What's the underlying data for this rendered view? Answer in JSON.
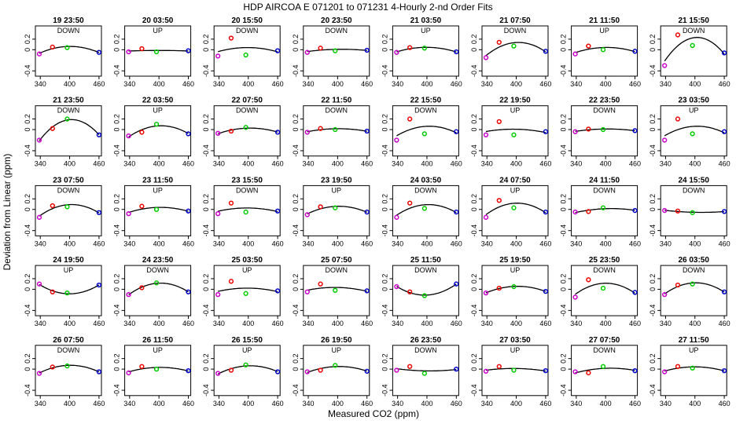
{
  "figure": {
    "title": "HDP    AIRCOA E    071201 to 071231   4-Hourly 2-nd Order Fits",
    "xlabel": "Measured CO2 (ppm)",
    "ylabel": "Deviation from Linear (ppm)"
  },
  "chart_data": {
    "type": "scatter",
    "layout": "grid of 5 rows x 8 columns of small multiples",
    "xlim": [
      330,
      465
    ],
    "ylim": [
      -0.5,
      0.45
    ],
    "x_ticks": [
      340,
      400,
      460
    ],
    "y_ticks": [
      -0.4,
      0,
      0.2
    ],
    "y_tick_labels": [
      "-0.4",
      "0",
      "0.2"
    ],
    "grid": false,
    "legend": "none",
    "colors": {
      "s1": "#cc00cc",
      "s2": "#ee0000",
      "s3": "#00cc00",
      "s4": "#0000cc",
      "fit": "#000000"
    },
    "markers": [
      "circle"
    ],
    "panel_x": [
      338,
      365,
      395,
      460
    ],
    "panels": [
      {
        "title": "19 23:50",
        "dir": "DOWN",
        "y": [
          -0.08,
          0.05,
          0.04,
          -0.05
        ]
      },
      {
        "title": "20 03:50",
        "dir": "UP",
        "y": [
          -0.04,
          0.02,
          -0.04,
          -0.02
        ]
      },
      {
        "title": "20 15:50",
        "dir": "DOWN",
        "y": [
          -0.12,
          0.22,
          -0.1,
          -0.02
        ]
      },
      {
        "title": "20 23:50",
        "dir": "DOWN",
        "y": [
          -0.05,
          0.03,
          -0.02,
          -0.01
        ]
      },
      {
        "title": "21 03:50",
        "dir": "UP",
        "y": [
          -0.05,
          0.04,
          0.03,
          -0.04
        ]
      },
      {
        "title": "21 07:50",
        "dir": "DOWN",
        "y": [
          -0.15,
          0.14,
          0.07,
          -0.03
        ]
      },
      {
        "title": "21 11:50",
        "dir": "UP",
        "y": [
          -0.08,
          0.07,
          0.0,
          -0.03
        ]
      },
      {
        "title": "21 15:50",
        "dir": "DOWN",
        "y": [
          -0.3,
          0.28,
          0.08,
          -0.06
        ]
      },
      {
        "title": "21 23:50",
        "dir": "DOWN",
        "y": [
          -0.2,
          0.02,
          0.2,
          -0.1
        ]
      },
      {
        "title": "22 03:50",
        "dir": "UP",
        "y": [
          -0.12,
          -0.05,
          0.1,
          -0.08
        ]
      },
      {
        "title": "22 07:50",
        "dir": "DOWN",
        "y": [
          -0.07,
          -0.03,
          0.04,
          -0.05
        ]
      },
      {
        "title": "22 11:50",
        "dir": "DOWN",
        "y": [
          -0.05,
          0.02,
          0.0,
          -0.03
        ]
      },
      {
        "title": "22 15:50",
        "dir": "DOWN",
        "y": [
          -0.2,
          0.2,
          -0.08,
          -0.04
        ]
      },
      {
        "title": "22 19:50",
        "dir": "UP",
        "y": [
          -0.1,
          0.15,
          -0.1,
          -0.04
        ]
      },
      {
        "title": "22 23:50",
        "dir": "DOWN",
        "y": [
          -0.04,
          0.01,
          0.0,
          -0.02
        ]
      },
      {
        "title": "23 03:50",
        "dir": "UP",
        "y": [
          -0.2,
          0.2,
          -0.08,
          -0.04
        ]
      },
      {
        "title": "23 07:50",
        "dir": "DOWN",
        "y": [
          -0.15,
          0.07,
          0.05,
          -0.06
        ]
      },
      {
        "title": "23 11:50",
        "dir": "UP",
        "y": [
          -0.08,
          0.06,
          0.0,
          -0.03
        ]
      },
      {
        "title": "23 15:50",
        "dir": "DOWN",
        "y": [
          -0.08,
          0.12,
          -0.05,
          -0.03
        ]
      },
      {
        "title": "23 19:50",
        "dir": "UP",
        "y": [
          -0.1,
          0.05,
          0.03,
          -0.05
        ]
      },
      {
        "title": "24 03:50",
        "dir": "DOWN",
        "y": [
          -0.15,
          0.12,
          0.02,
          -0.05
        ]
      },
      {
        "title": "24 07:50",
        "dir": "UP",
        "y": [
          -0.15,
          0.17,
          0.03,
          -0.05
        ]
      },
      {
        "title": "24 11:50",
        "dir": "DOWN",
        "y": [
          -0.05,
          -0.04,
          0.03,
          -0.02
        ]
      },
      {
        "title": "24 15:50",
        "dir": "DOWN",
        "y": [
          -0.02,
          -0.03,
          -0.06,
          -0.04
        ]
      },
      {
        "title": "24 19:50",
        "dir": "UP",
        "y": [
          0.1,
          -0.05,
          -0.07,
          0.08
        ]
      },
      {
        "title": "24 23:50",
        "dir": "DOWN",
        "y": [
          -0.1,
          0.03,
          0.12,
          -0.05
        ]
      },
      {
        "title": "25 03:50",
        "dir": "UP",
        "y": [
          -0.1,
          0.15,
          -0.08,
          -0.03
        ]
      },
      {
        "title": "25 07:50",
        "dir": "DOWN",
        "y": [
          -0.05,
          0.1,
          -0.02,
          -0.03
        ]
      },
      {
        "title": "25 11:50",
        "dir": "DOWN",
        "y": [
          0.05,
          -0.05,
          -0.12,
          0.1
        ]
      },
      {
        "title": "25 19:50",
        "dir": "UP",
        "y": [
          -0.07,
          0.02,
          0.05,
          -0.04
        ]
      },
      {
        "title": "25 23:50",
        "dir": "DOWN",
        "y": [
          -0.15,
          0.18,
          0.02,
          -0.06
        ]
      },
      {
        "title": "26 03:50",
        "dir": "DOWN",
        "y": [
          -0.1,
          0.08,
          0.1,
          -0.05
        ]
      },
      {
        "title": "26 07:50",
        "dir": "DOWN",
        "y": [
          -0.08,
          0.04,
          0.06,
          -0.05
        ]
      },
      {
        "title": "26 11:50",
        "dir": "UP",
        "y": [
          -0.07,
          0.05,
          0.0,
          -0.03
        ]
      },
      {
        "title": "26 15:50",
        "dir": "UP",
        "y": [
          -0.08,
          -0.02,
          0.08,
          -0.05
        ]
      },
      {
        "title": "26 19:50",
        "dir": "UP",
        "y": [
          -0.05,
          -0.02,
          0.07,
          -0.04
        ]
      },
      {
        "title": "26 23:50",
        "dir": "DOWN",
        "y": [
          -0.02,
          0.05,
          -0.08,
          0.0
        ]
      },
      {
        "title": "27 03:50",
        "dir": "UP",
        "y": [
          -0.04,
          0.05,
          -0.02,
          -0.03
        ]
      },
      {
        "title": "27 07:50",
        "dir": "DOWN",
        "y": [
          -0.05,
          -0.07,
          0.05,
          -0.03
        ]
      },
      {
        "title": "27 11:50",
        "dir": "UP",
        "y": [
          -0.05,
          0.05,
          0.02,
          -0.03
        ]
      }
    ]
  }
}
